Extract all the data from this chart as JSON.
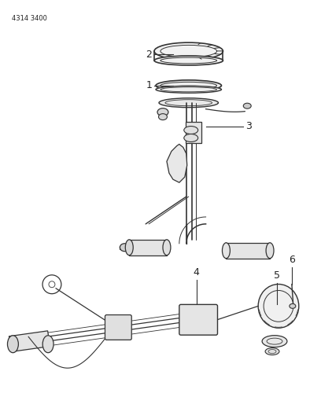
{
  "part_number": "4314 3400",
  "background_color": "#ffffff",
  "line_color": "#333333",
  "label_color": "#222222",
  "figsize": [
    4.08,
    5.33
  ],
  "dpi": 100
}
